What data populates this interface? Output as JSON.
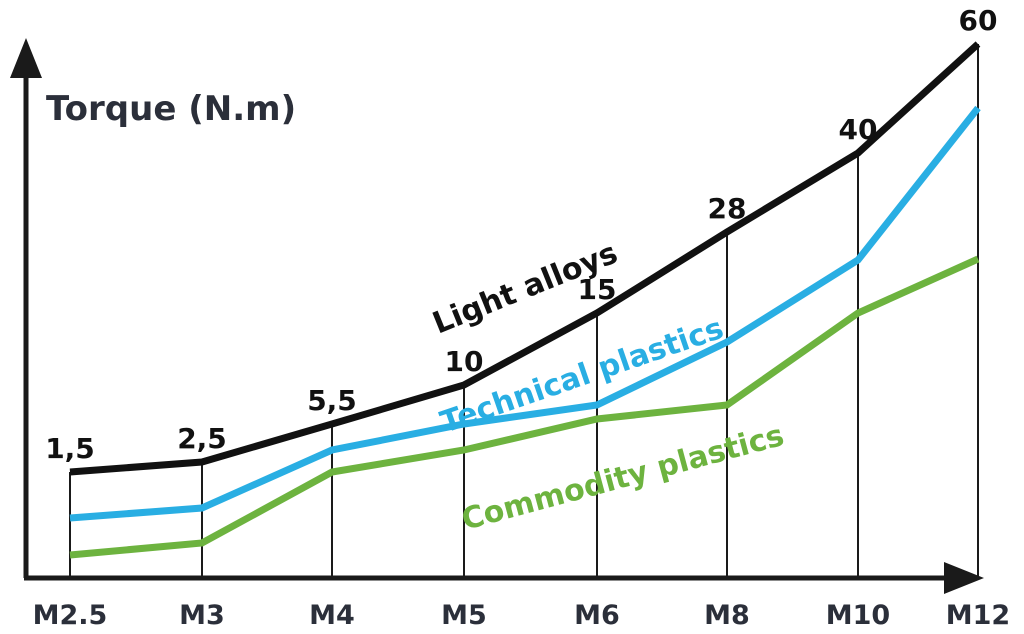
{
  "chart_data": {
    "type": "line",
    "ylabel": "Torque (N.m)",
    "xlabel": "",
    "categories": [
      "M2.5",
      "M3",
      "M4",
      "M5",
      "M6",
      "M8",
      "M10",
      "M12"
    ],
    "grid": "vertical lines at each category",
    "series": [
      {
        "name": "Light alloys",
        "color": "#111111",
        "values": [
          1.5,
          2.5,
          5.5,
          10,
          15,
          28,
          40,
          60
        ],
        "data_labels": [
          "1,5",
          "2,5",
          "5,5",
          "10",
          "15",
          "28",
          "40",
          "60"
        ]
      },
      {
        "name": "Technical plastics",
        "color": "#29aee3",
        "values": [
          0.8,
          1.3,
          3,
          5.5,
          9,
          16,
          24,
          42
        ]
      },
      {
        "name": "Commodity plastics",
        "color": "#6db33f",
        "values": [
          0.3,
          0.6,
          1.5,
          3,
          5,
          9,
          15,
          25
        ]
      }
    ]
  }
}
